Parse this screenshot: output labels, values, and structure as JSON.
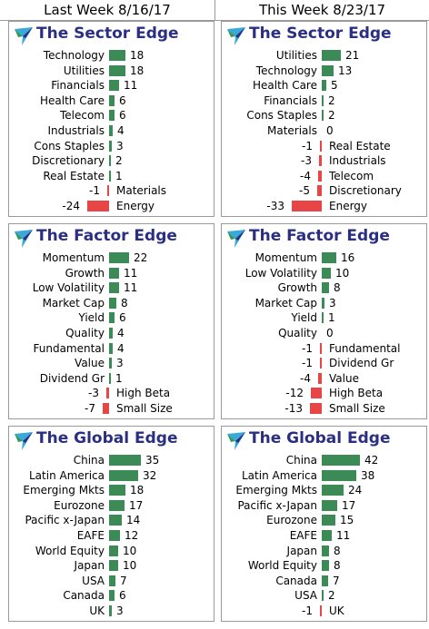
{
  "columns": [
    {
      "title": "Last Week 8/16/17"
    },
    {
      "title": "This Week 8/23/17"
    }
  ],
  "colors": {
    "positive": "#3c8a56",
    "negative": "#e84646",
    "title": "#2b2f82"
  },
  "chart_data": [
    {
      "type": "bar",
      "title": "The Sector Edge",
      "column": "Last Week 8/16/17",
      "categories": [
        "Technology",
        "Utilities",
        "Financials",
        "Health Care",
        "Telecom",
        "Industrials",
        "Cons Staples",
        "Discretionary",
        "Real Estate",
        "Materials",
        "Energy"
      ],
      "values": [
        18,
        18,
        11,
        6,
        6,
        4,
        3,
        2,
        1,
        -1,
        -24
      ]
    },
    {
      "type": "bar",
      "title": "The Sector Edge",
      "column": "This Week 8/23/17",
      "categories": [
        "Utilities",
        "Technology",
        "Health Care",
        "Financials",
        "Cons Staples",
        "Materials",
        "Real Estate",
        "Industrials",
        "Telecom",
        "Discretionary",
        "Energy"
      ],
      "values": [
        21,
        13,
        5,
        2,
        2,
        0,
        -1,
        -3,
        -4,
        -5,
        -33
      ]
    },
    {
      "type": "bar",
      "title": "The Factor Edge",
      "column": "Last Week 8/16/17",
      "categories": [
        "Momentum",
        "Growth",
        "Low Volatility",
        "Market Cap",
        "Yield",
        "Quality",
        "Fundamental",
        "Value",
        "Dividend Gr",
        "High Beta",
        "Small Size"
      ],
      "values": [
        22,
        11,
        11,
        8,
        6,
        4,
        4,
        3,
        1,
        -3,
        -7
      ]
    },
    {
      "type": "bar",
      "title": "The Factor Edge",
      "column": "This Week 8/23/17",
      "categories": [
        "Momentum",
        "Low Volatility",
        "Growth",
        "Market Cap",
        "Yield",
        "Quality",
        "Fundamental",
        "Dividend Gr",
        "Value",
        "High Beta",
        "Small Size"
      ],
      "values": [
        16,
        10,
        8,
        3,
        1,
        0,
        -1,
        -1,
        -4,
        -12,
        -13
      ]
    },
    {
      "type": "bar",
      "title": "The Global Edge",
      "column": "Last Week 8/16/17",
      "categories": [
        "China",
        "Latin America",
        "Emerging Mkts",
        "Eurozone",
        "Pacific x-Japan",
        "EAFE",
        "World Equity",
        "Japan",
        "USA",
        "Canada",
        "UK"
      ],
      "values": [
        35,
        32,
        18,
        17,
        14,
        12,
        10,
        10,
        7,
        6,
        3
      ]
    },
    {
      "type": "bar",
      "title": "The Global Edge",
      "column": "This Week 8/23/17",
      "categories": [
        "China",
        "Latin America",
        "Emerging Mkts",
        "Pacific x-Japan",
        "Eurozone",
        "EAFE",
        "Japan",
        "World Equity",
        "Canada",
        "USA",
        "UK"
      ],
      "values": [
        42,
        38,
        24,
        17,
        15,
        11,
        8,
        8,
        7,
        2,
        -1
      ]
    }
  ]
}
